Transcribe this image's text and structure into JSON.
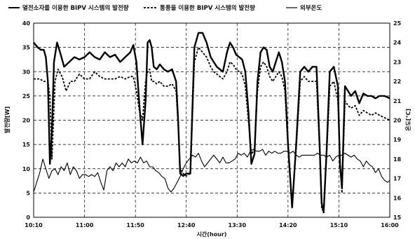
{
  "chart_data": {
    "type": "line",
    "xlabel": "시간(hour)",
    "ylabel_left": "발전량[W]",
    "ylabel_right": "온도[℃]",
    "x_ticks": [
      "10:10",
      "11:00",
      "11:50",
      "12:40",
      "13:30",
      "14:20",
      "15:10",
      "16:00"
    ],
    "x_range_minutes": [
      610,
      960
    ],
    "ylim_left": [
      0,
      40
    ],
    "ylim_right": [
      15,
      25
    ],
    "y_ticks_left": [
      "0",
      "5",
      "10",
      "15",
      "20",
      "25",
      "30",
      "35",
      "40"
    ],
    "y_ticks_right": [
      "15",
      "16",
      "17",
      "18",
      "19",
      "20",
      "21",
      "22",
      "23",
      "24",
      "25"
    ],
    "grid": true,
    "legend_position": "top",
    "series": [
      {
        "name": "열전소자를 이용한 BIPV 시스템의 발전량",
        "axis": "left",
        "style": "solid-thick",
        "color": "#000000",
        "x": [
          610,
          614,
          617,
          620,
          622,
          624,
          626,
          628,
          630,
          633,
          636,
          640,
          645,
          650,
          655,
          660,
          665,
          670,
          675,
          680,
          685,
          690,
          695,
          700,
          705,
          708,
          711,
          714,
          717,
          720,
          722,
          724,
          726,
          728,
          731,
          734,
          738,
          742,
          746,
          750,
          752,
          754,
          757,
          760,
          764,
          768,
          772,
          776,
          780,
          784,
          787,
          790,
          793,
          796,
          800,
          803,
          806,
          809,
          812,
          815,
          818,
          821,
          824,
          827,
          830,
          833,
          836,
          839,
          842,
          845,
          848,
          851,
          854,
          857,
          860,
          864,
          868,
          872,
          876,
          880,
          884,
          888,
          891,
          893,
          895,
          898,
          901,
          905,
          909,
          911,
          913,
          916,
          919,
          922,
          926,
          930,
          934,
          938,
          942,
          946,
          950,
          955,
          960
        ],
        "y": [
          36,
          35,
          34.5,
          34.5,
          33,
          28,
          11,
          18,
          32,
          36,
          34,
          31,
          32,
          33,
          32.5,
          33,
          34,
          33,
          32.5,
          34,
          33,
          33.5,
          32,
          33,
          34,
          35.5,
          32,
          23,
          15,
          24,
          36,
          36.5,
          35,
          31,
          30.5,
          31.5,
          30.5,
          30,
          30.5,
          28,
          20,
          9,
          8.5,
          9,
          9,
          35,
          38,
          38,
          36,
          33,
          32,
          31,
          30.5,
          30,
          34,
          36,
          35,
          33.5,
          33,
          32.5,
          30,
          22,
          11,
          13,
          28,
          34,
          35,
          34.5,
          31,
          30,
          32,
          34,
          32,
          28,
          15,
          2,
          15,
          30,
          31,
          30,
          31,
          31,
          15,
          3,
          1,
          14,
          30,
          31,
          27,
          11,
          6,
          27,
          26,
          25,
          26,
          23.5,
          25.5,
          25,
          25,
          24.5,
          25,
          25,
          24.5
        ]
      },
      {
        "name": "통풍을 이용한 BIPV 시스템의 발전량",
        "axis": "left",
        "style": "dashed",
        "color": "#000000",
        "x": [
          610,
          616,
          620,
          624,
          626,
          628,
          631,
          634,
          638,
          642,
          646,
          650,
          655,
          660,
          665,
          670,
          675,
          680,
          685,
          690,
          695,
          700,
          705,
          708,
          711,
          714,
          717,
          720,
          722,
          724,
          726,
          728,
          731,
          734,
          738,
          742,
          746,
          750,
          752,
          754,
          757,
          760,
          764,
          768,
          772,
          776,
          780,
          784,
          787,
          790,
          793,
          796,
          800,
          803,
          806,
          809,
          812,
          815,
          818,
          821,
          824,
          827,
          830,
          833,
          836,
          839,
          842,
          845,
          848,
          851,
          854,
          857,
          860,
          864,
          868,
          872,
          876,
          880,
          884,
          888,
          891,
          893,
          895,
          898,
          901,
          905,
          909,
          911,
          913,
          916,
          919,
          922,
          926,
          930,
          934,
          938,
          942,
          946,
          950,
          955,
          960
        ],
        "y": [
          28.5,
          28.5,
          28,
          28,
          25,
          12,
          28,
          30.5,
          29,
          26,
          28,
          28,
          29.5,
          28.5,
          28.5,
          30,
          29,
          28.5,
          28.5,
          28.5,
          29,
          28.5,
          29,
          29,
          26,
          22,
          20,
          28,
          30,
          30.5,
          28,
          28,
          27.5,
          28,
          27,
          27,
          27.5,
          26,
          19,
          10,
          9,
          8.5,
          9,
          32,
          35,
          34,
          33,
          31,
          30,
          29.5,
          29,
          28.5,
          30,
          32,
          31.5,
          30.5,
          30,
          29.5,
          27,
          20,
          13,
          14,
          26,
          31,
          32,
          31,
          29,
          28,
          29,
          30,
          29,
          26,
          14,
          3,
          14,
          28,
          29,
          28,
          28,
          28,
          14,
          2,
          1,
          13,
          27,
          28,
          24,
          12,
          5,
          24,
          23,
          22.5,
          23,
          21,
          22,
          21.5,
          21,
          21.5,
          21,
          20.5,
          20
        ]
      },
      {
        "name": "외부온도",
        "axis": "right",
        "style": "solid-thin",
        "color": "#000000",
        "x": [
          610,
          613,
          616,
          619,
          622,
          625,
          628,
          631,
          634,
          637,
          640,
          643,
          646,
          649,
          652,
          655,
          658,
          661,
          664,
          667,
          670,
          673,
          676,
          679,
          682,
          685,
          688,
          691,
          694,
          697,
          700,
          703,
          706,
          709,
          712,
          715,
          718,
          721,
          724,
          727,
          730,
          733,
          736,
          739,
          742,
          745,
          748,
          751,
          754,
          757,
          760,
          763,
          766,
          769,
          772,
          775,
          778,
          781,
          784,
          787,
          790,
          793,
          796,
          799,
          802,
          805,
          808,
          811,
          814,
          817,
          820,
          823,
          826,
          829,
          832,
          835,
          838,
          841,
          844,
          847,
          850,
          853,
          856,
          859,
          862,
          865,
          868,
          871,
          874,
          877,
          880,
          883,
          886,
          889,
          892,
          895,
          898,
          901,
          904,
          907,
          910,
          913,
          916,
          919,
          922,
          925,
          928,
          931,
          934,
          937,
          940,
          943,
          946,
          949,
          952,
          955,
          958,
          960
        ],
        "y": [
          16.3,
          16.8,
          17.3,
          18,
          17.5,
          17,
          17.4,
          17.5,
          17.2,
          17.6,
          17.4,
          17.8,
          17.2,
          17.6,
          17.4,
          17,
          17.2,
          17.2,
          17.1,
          17.2,
          17.1,
          17.3,
          16.8,
          16.4,
          17.4,
          17.6,
          17.4,
          17.8,
          17.6,
          17.8,
          17.6,
          18,
          17.8,
          17.9,
          17.8,
          18.1,
          17.8,
          17.9,
          17.6,
          17.6,
          17.4,
          17.3,
          17.1,
          17,
          16.5,
          16.3,
          16.5,
          16.8,
          17.1,
          17.5,
          17.8,
          18,
          18.2,
          18.1,
          18.3,
          17.9,
          17.6,
          17.8,
          18,
          18.2,
          18,
          17.8,
          18.1,
          17.8,
          17.8,
          17.9,
          18,
          18.3,
          18.2,
          18.3,
          18.1,
          18.4,
          18.5,
          18.4,
          18.4,
          18.5,
          18.2,
          18.4,
          18.3,
          18.4,
          18.3,
          18.3,
          18.4,
          18.4,
          18.3,
          18.4,
          18.2,
          18.1,
          18.2,
          18.2,
          18.2,
          18.2,
          18.2,
          18.3,
          18.2,
          18.2,
          18.1,
          18.2,
          17.9,
          18.1,
          18.2,
          18.2,
          18.3,
          18.2,
          18.1,
          18.2,
          18,
          17.9,
          17.6,
          17.9,
          17.7,
          17.6,
          17.3,
          17.5,
          17.1,
          16.9,
          16.8,
          16.9
        ]
      }
    ]
  }
}
